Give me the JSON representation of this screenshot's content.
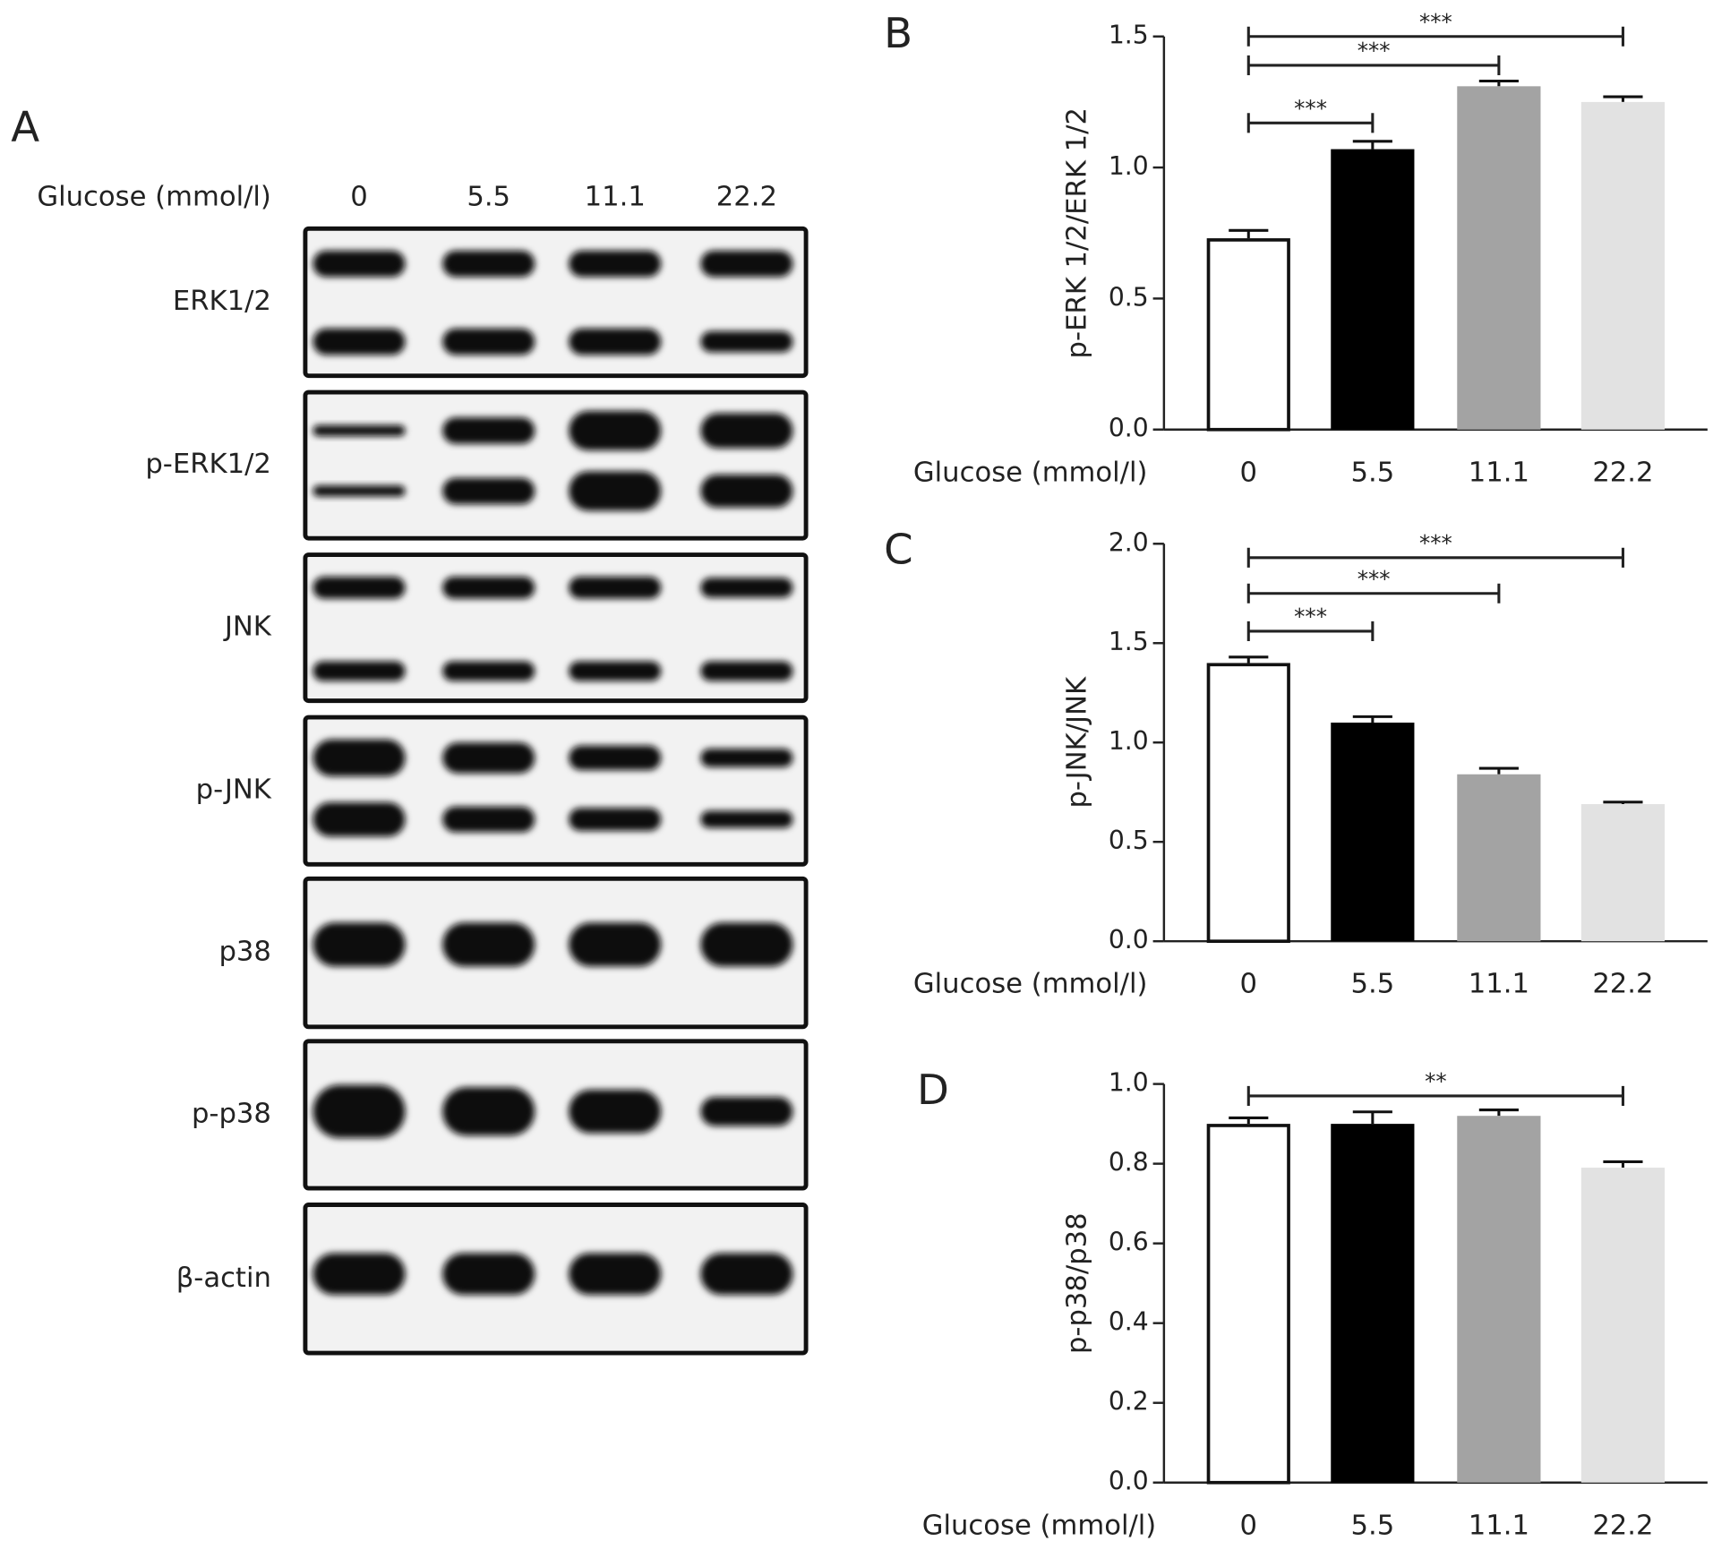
{
  "blot": {
    "panel": "A",
    "axis_label": "Glucose (mmol/l)",
    "lanes": [
      "0",
      "5.5",
      "11.1",
      "22.2"
    ],
    "proteins": [
      "ERK1/2",
      "p-ERK1/2",
      "JNK",
      "p-JNK",
      "p38",
      "p-p38",
      "β-actin"
    ]
  },
  "chart_data": [
    {
      "type": "bar",
      "panel": "B",
      "ylabel": "p-ERK 1/2/ERK 1/2",
      "xlabel": "Glucose (mmol/l)",
      "categories": [
        "0",
        "5.5",
        "11.1",
        "22.2"
      ],
      "values": [
        0.73,
        1.07,
        1.31,
        1.25
      ],
      "errors": [
        0.03,
        0.03,
        0.02,
        0.02
      ],
      "colors": [
        "#ffffff",
        "#000000",
        "#a3a3a3",
        "#e2e2e2"
      ],
      "ylim": [
        0,
        1.5
      ],
      "yticks": [
        {
          "value": 0,
          "label": "0.0"
        },
        0.5,
        {
          "value": 1,
          "label": "1.0"
        },
        1.5
      ],
      "annotations": [
        {
          "from": 0,
          "to": 1,
          "y": 1.17,
          "label": "***"
        },
        {
          "from": 0,
          "to": 2,
          "y": 1.39,
          "label": "***"
        },
        {
          "from": 0,
          "to": 3,
          "y": 1.5,
          "label": "***"
        }
      ]
    },
    {
      "type": "bar",
      "panel": "C",
      "ylabel": "p-JNK/JNK",
      "xlabel": "Glucose (mmol/l)",
      "categories": [
        "0",
        "5.5",
        "11.1",
        "22.2"
      ],
      "values": [
        1.4,
        1.1,
        0.84,
        0.69
      ],
      "errors": [
        0.03,
        0.03,
        0.03,
        0.01
      ],
      "colors": [
        "#ffffff",
        "#000000",
        "#a3a3a3",
        "#e2e2e2"
      ],
      "ylim": [
        0,
        2
      ],
      "yticks": [
        {
          "value": 0,
          "label": "0.0"
        },
        0.5,
        {
          "value": 1,
          "label": "1.0"
        },
        1.5,
        {
          "value": 2,
          "label": "2.0"
        }
      ],
      "annotations": [
        {
          "from": 0,
          "to": 1,
          "y": 1.56,
          "label": "***"
        },
        {
          "from": 0,
          "to": 2,
          "y": 1.75,
          "label": "***"
        },
        {
          "from": 0,
          "to": 3,
          "y": 1.93,
          "label": "***"
        }
      ]
    },
    {
      "type": "bar",
      "panel": "D",
      "ylabel": "p-p38/p38",
      "xlabel": "Glucose (mmol/l)",
      "categories": [
        "0",
        "5.5",
        "11.1",
        "22.2"
      ],
      "values": [
        0.9,
        0.9,
        0.92,
        0.79
      ],
      "errors": [
        0.015,
        0.03,
        0.015,
        0.015
      ],
      "colors": [
        "#ffffff",
        "#000000",
        "#a3a3a3",
        "#e2e2e2"
      ],
      "ylim": [
        0,
        1
      ],
      "yticks": [
        {
          "value": 0,
          "label": "0.0"
        },
        0.2,
        0.4,
        0.6,
        0.8,
        {
          "value": 1,
          "label": "1.0"
        }
      ],
      "annotations": [
        {
          "from": 0,
          "to": 3,
          "y": 0.97,
          "label": "**"
        }
      ]
    }
  ]
}
